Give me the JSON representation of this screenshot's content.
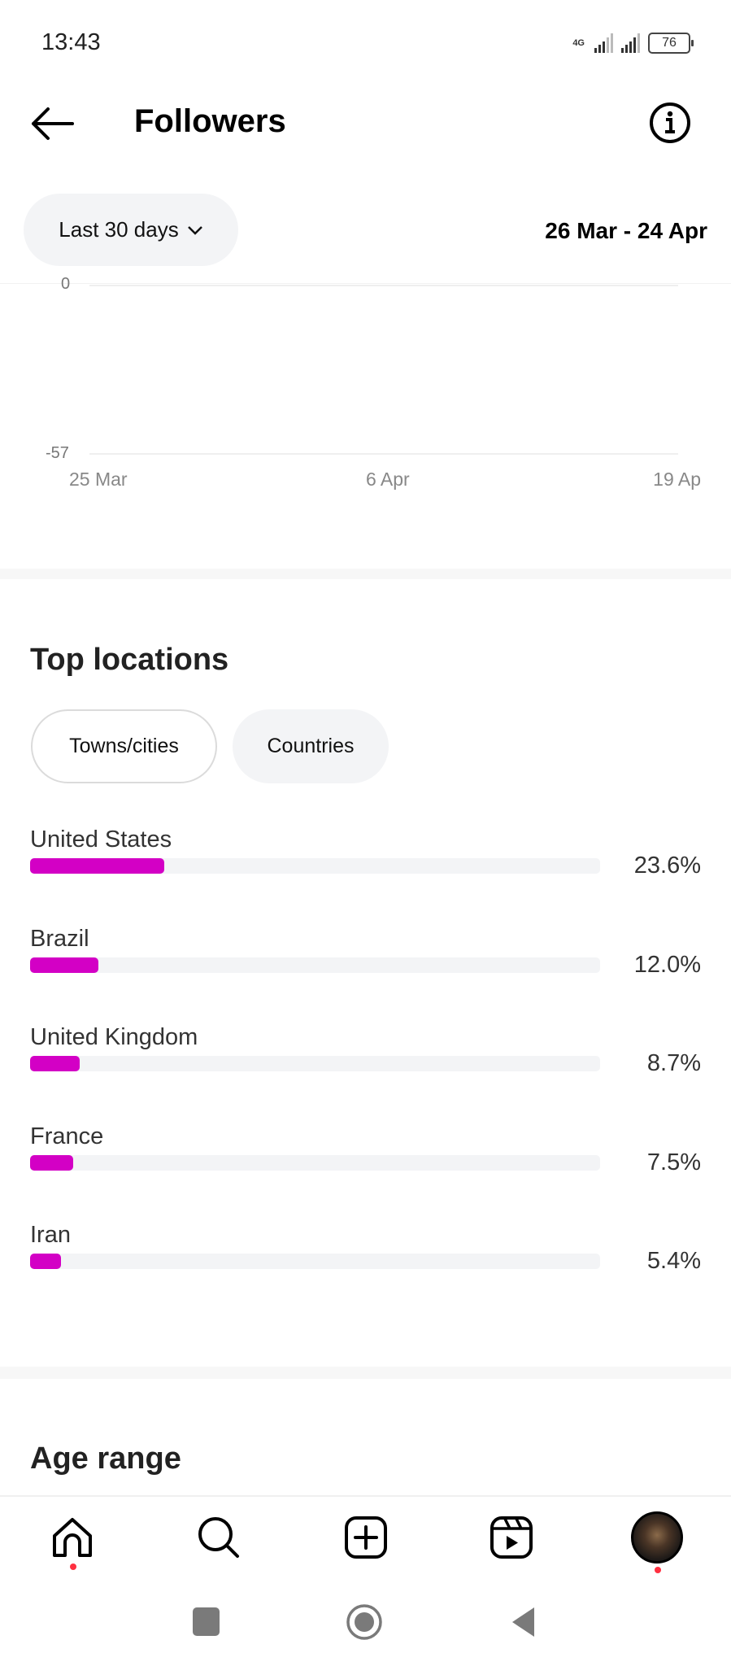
{
  "status_bar": {
    "time": "13:43",
    "network": "4G",
    "battery": "76"
  },
  "header": {
    "title": "Followers",
    "back_icon": "arrow-left-icon",
    "info_icon": "info-icon"
  },
  "filter": {
    "period_label": "Last 30 days",
    "date_range": "26 Mar - 24 Apr"
  },
  "chart_data": {
    "type": "line",
    "y_ticks": [
      "0",
      "-57"
    ],
    "ylim": [
      -57,
      0
    ],
    "x_ticks": [
      "25 Mar",
      "6 Apr",
      "19 Ap"
    ],
    "grid": true
  },
  "top_locations": {
    "title": "Top locations",
    "tabs": [
      {
        "label": "Towns/cities",
        "selected": false
      },
      {
        "label": "Countries",
        "selected": true
      }
    ],
    "bar_color": "#d300c5",
    "items": [
      {
        "name": "United States",
        "percent_label": "23.6%",
        "value": 23.6
      },
      {
        "name": "Brazil",
        "percent_label": "12.0%",
        "value": 12.0
      },
      {
        "name": "United Kingdom",
        "percent_label": "8.7%",
        "value": 8.7
      },
      {
        "name": "France",
        "percent_label": "7.5%",
        "value": 7.5
      },
      {
        "name": "Iran",
        "percent_label": "5.4%",
        "value": 5.4
      }
    ]
  },
  "age_range": {
    "title": "Age range"
  },
  "bottom_nav": {
    "items": [
      "home-icon",
      "search-icon",
      "create-icon",
      "reels-icon",
      "profile-avatar"
    ],
    "notification_color": "#ff3040"
  },
  "system_nav": {
    "items": [
      "recents-icon",
      "home-circle-icon",
      "back-triangle-icon"
    ]
  }
}
